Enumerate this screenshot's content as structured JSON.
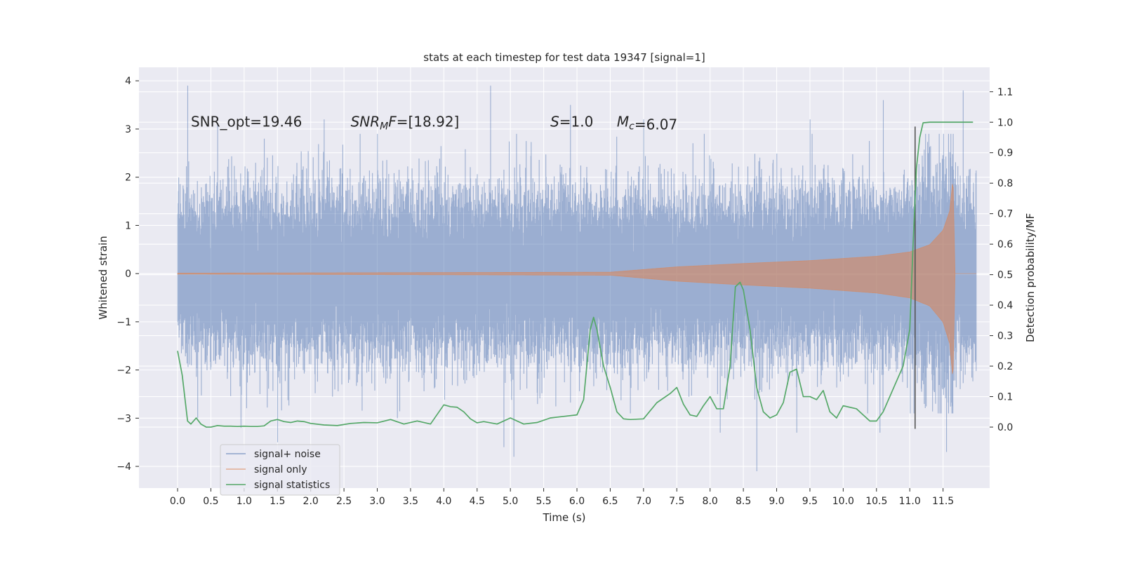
{
  "chart_data": {
    "type": "line",
    "title": "stats at each timestep for test data 19347 [signal=1]",
    "xlabel": "Time (s)",
    "ylabel": "Whitened strain",
    "ylabel_right": "Detection probability/MF",
    "xlim": [
      -0.58,
      12.2
    ],
    "ylim": [
      -4.45,
      4.28
    ],
    "ylim_right": [
      -0.2,
      1.18
    ],
    "x_ticks": [
      0.0,
      0.5,
      1.0,
      1.5,
      2.0,
      2.5,
      3.0,
      3.5,
      4.0,
      4.5,
      5.0,
      5.5,
      6.0,
      6.5,
      7.0,
      7.5,
      8.0,
      8.5,
      9.0,
      9.5,
      10.0,
      10.5,
      11.0,
      11.5
    ],
    "x_tick_labels": [
      "0.0",
      "0.5",
      "1.0",
      "1.5",
      "2.0",
      "2.5",
      "3.0",
      "3.5",
      "4.0",
      "4.5",
      "5.0",
      "5.5",
      "6.0",
      "6.5",
      "7.0",
      "7.5",
      "8.0",
      "8.5",
      "9.0",
      "9.5",
      "10.0",
      "10.5",
      "11.0",
      "11.5"
    ],
    "y_ticks": [
      -4,
      -3,
      -2,
      -1,
      0,
      1,
      2,
      3,
      4
    ],
    "y_tick_labels": [
      "−4",
      "−3",
      "−2",
      "−1",
      "0",
      "1",
      "2",
      "3",
      "4"
    ],
    "y_ticks_right": [
      0.0,
      0.1,
      0.2,
      0.3,
      0.4,
      0.5,
      0.6,
      0.7,
      0.8,
      0.9,
      1.0,
      1.1
    ],
    "y_tick_labels_right": [
      "0.0",
      "0.1",
      "0.2",
      "0.3",
      "0.4",
      "0.5",
      "0.6",
      "0.7",
      "0.8",
      "0.9",
      "1.0",
      "1.1"
    ],
    "grid": true,
    "legend_position": "lower-left",
    "annotations": [
      {
        "text": "SNR_opt=19.46",
        "x": 0.2,
        "y": 3.05
      },
      {
        "text": "SNR_MF=[18.92]",
        "x": 2.6,
        "y": 3.05
      },
      {
        "text": "S=1.0",
        "x": 5.6,
        "y": 3.05
      },
      {
        "text": "M_c=6.07",
        "x": 6.6,
        "y": 3.05
      }
    ],
    "vline": {
      "x": 11.08,
      "y_range": [
        -3.22,
        3.05
      ],
      "color": "#555555"
    },
    "series": [
      {
        "name": "signal+ noise",
        "color": "#4c72b0",
        "axis": "left",
        "kind": "noisy strain, sample rate ~2048 Hz, duration 12.0 s",
        "t_range": [
          0.0,
          12.0
        ],
        "envelope_points": [
          [
            0.0,
            1.2
          ],
          [
            11.0,
            1.2
          ],
          [
            11.65,
            1.9
          ],
          [
            11.7,
            1.2
          ],
          [
            12.0,
            1.2
          ]
        ],
        "peak_maxima": [
          [
            0.15,
            3.9
          ],
          [
            0.6,
            3.1
          ],
          [
            1.3,
            2.8
          ],
          [
            2.2,
            3.2
          ],
          [
            3.0,
            2.9
          ],
          [
            4.7,
            3.9
          ],
          [
            5.9,
            3.5
          ],
          [
            7.0,
            3.2
          ],
          [
            9.5,
            3.2
          ],
          [
            10.6,
            3.6
          ],
          [
            11.8,
            3.8
          ]
        ],
        "peak_minima": [
          [
            0.3,
            -3.0
          ],
          [
            0.95,
            -3.2
          ],
          [
            1.5,
            -3.5
          ],
          [
            3.3,
            -3.0
          ],
          [
            4.9,
            -3.6
          ],
          [
            5.05,
            -3.8
          ],
          [
            8.15,
            -3.3
          ],
          [
            8.7,
            -4.1
          ],
          [
            9.3,
            -3.3
          ],
          [
            10.55,
            -3.3
          ],
          [
            11.55,
            -3.7
          ]
        ]
      },
      {
        "name": "signal only",
        "color": "#dd8452",
        "axis": "left",
        "kind": "chirp",
        "t_range": [
          0.0,
          12.0
        ],
        "envelope_points": [
          [
            0.0,
            0.01
          ],
          [
            6.5,
            0.03
          ],
          [
            7.5,
            0.14
          ],
          [
            8.5,
            0.21
          ],
          [
            9.5,
            0.27
          ],
          [
            10.5,
            0.36
          ],
          [
            11.0,
            0.45
          ],
          [
            11.3,
            0.6
          ],
          [
            11.5,
            0.9
          ],
          [
            11.6,
            1.3
          ],
          [
            11.65,
            2.0
          ],
          [
            11.68,
            0.0
          ],
          [
            12.0,
            0.0
          ]
        ]
      },
      {
        "name": "signal statistics",
        "color": "#55a868",
        "axis": "right",
        "x": [
          0.0,
          0.07,
          0.15,
          0.2,
          0.28,
          0.35,
          0.43,
          0.5,
          0.6,
          0.7,
          0.8,
          0.9,
          1.0,
          1.1,
          1.2,
          1.3,
          1.4,
          1.5,
          1.6,
          1.7,
          1.8,
          1.9,
          2.0,
          2.2,
          2.4,
          2.6,
          2.8,
          3.0,
          3.2,
          3.4,
          3.6,
          3.8,
          4.0,
          4.1,
          4.2,
          4.3,
          4.4,
          4.5,
          4.6,
          4.8,
          5.0,
          5.2,
          5.4,
          5.6,
          5.8,
          6.0,
          6.1,
          6.2,
          6.25,
          6.3,
          6.4,
          6.5,
          6.6,
          6.7,
          6.8,
          7.0,
          7.2,
          7.4,
          7.5,
          7.6,
          7.7,
          7.8,
          7.9,
          8.0,
          8.1,
          8.2,
          8.3,
          8.38,
          8.45,
          8.5,
          8.6,
          8.7,
          8.8,
          8.9,
          9.0,
          9.1,
          9.2,
          9.3,
          9.4,
          9.5,
          9.6,
          9.7,
          9.8,
          9.9,
          10.0,
          10.2,
          10.4,
          10.5,
          10.6,
          10.7,
          10.8,
          10.9,
          11.0,
          11.05,
          11.1,
          11.15,
          11.2,
          11.3,
          11.5,
          11.8,
          11.95
        ],
        "values": [
          0.25,
          0.17,
          0.02,
          0.01,
          0.03,
          0.01,
          0.0,
          0.0,
          0.005,
          0.003,
          0.003,
          0.002,
          0.003,
          0.002,
          0.002,
          0.004,
          0.02,
          0.025,
          0.018,
          0.015,
          0.02,
          0.018,
          0.012,
          0.007,
          0.005,
          0.012,
          0.015,
          0.014,
          0.025,
          0.01,
          0.02,
          0.01,
          0.073,
          0.067,
          0.065,
          0.05,
          0.027,
          0.014,
          0.018,
          0.01,
          0.03,
          0.01,
          0.015,
          0.03,
          0.035,
          0.04,
          0.09,
          0.32,
          0.36,
          0.32,
          0.2,
          0.13,
          0.05,
          0.027,
          0.025,
          0.027,
          0.08,
          0.11,
          0.13,
          0.075,
          0.04,
          0.035,
          0.07,
          0.1,
          0.06,
          0.06,
          0.2,
          0.46,
          0.475,
          0.45,
          0.32,
          0.13,
          0.05,
          0.03,
          0.04,
          0.08,
          0.18,
          0.19,
          0.1,
          0.1,
          0.09,
          0.12,
          0.05,
          0.03,
          0.07,
          0.06,
          0.02,
          0.02,
          0.05,
          0.1,
          0.15,
          0.2,
          0.32,
          0.6,
          0.85,
          0.95,
          0.998,
          1.0,
          1.0,
          1.0,
          1.0
        ]
      }
    ]
  }
}
